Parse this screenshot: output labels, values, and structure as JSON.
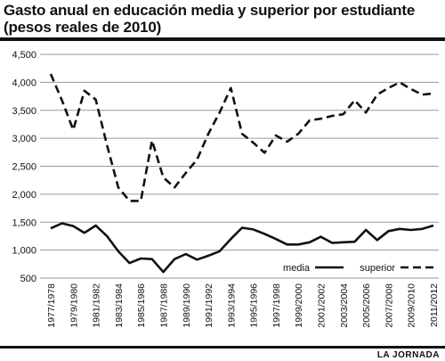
{
  "title": "Gasto anual en educación media y superior por estudiante (pesos reales de 2010)",
  "credit": "LA JORNADA",
  "chart_data": {
    "type": "line",
    "title": "Gasto anual en educación media y superior por estudiante (pesos reales de 2010)",
    "ylim": [
      500,
      4500
    ],
    "yticks": [
      "4,500",
      "4,000",
      "3,500",
      "3,000",
      "2,500",
      "2,000",
      "1,500",
      "1,000",
      "500"
    ],
    "ytick_values": [
      4500,
      4000,
      3500,
      3000,
      2500,
      2000,
      1500,
      1000,
      500
    ],
    "x": [
      "1977/1978",
      "1978/1979",
      "1979/1980",
      "1980/1981",
      "1981/1982",
      "1982/1983",
      "1983/1984",
      "1984/1985",
      "1985/1986",
      "1986/1987",
      "1987/1988",
      "1988/1989",
      "1989/1990",
      "1990/1991",
      "1991/1992",
      "1992/1993",
      "1993/1994",
      "1994/1995",
      "1995/1996",
      "1996/1997",
      "1997/1998",
      "1998/1999",
      "1999/2000",
      "2000/2001",
      "2001/2002",
      "2002/2003",
      "2003/2004",
      "2004/2005",
      "2005/2006",
      "2006/2007",
      "2007/2008",
      "2008/2009",
      "2009/2010",
      "2010/2011",
      "2011/2012"
    ],
    "xtick_labels": [
      "1977/1978",
      "1979/1980",
      "1981/1982",
      "1983/1984",
      "1985/1986",
      "1987/1988",
      "1989/1990",
      "1991/1992",
      "1993/1994",
      "1995/1996",
      "1997/1998",
      "1999/2000",
      "2001/2002",
      "2003/2004",
      "2005/2006",
      "2007/2008",
      "2009/2010",
      "2011/2012"
    ],
    "grid": "horizontal",
    "legend_position": "bottom-right",
    "series": [
      {
        "name": "media",
        "style": "solid",
        "values": [
          1390,
          1480,
          1430,
          1310,
          1440,
          1250,
          980,
          770,
          850,
          840,
          610,
          840,
          930,
          830,
          900,
          980,
          1200,
          1400,
          1370,
          1290,
          1200,
          1100,
          1100,
          1140,
          1240,
          1130,
          1140,
          1150,
          1360,
          1180,
          1340,
          1380,
          1360,
          1380,
          1440
        ]
      },
      {
        "name": "superior",
        "style": "dashed",
        "values": [
          4150,
          3680,
          3150,
          3850,
          3690,
          2880,
          2120,
          1880,
          1880,
          2960,
          2300,
          2120,
          2380,
          2620,
          3080,
          3460,
          3900,
          3080,
          2920,
          2740,
          3050,
          2940,
          3080,
          3320,
          3350,
          3400,
          3430,
          3680,
          3460,
          3780,
          3900,
          4000,
          3880,
          3780,
          3800
        ]
      }
    ]
  },
  "colors": {
    "line": "#111111",
    "grid": "#9a9a9a",
    "background": "#ffffff"
  }
}
